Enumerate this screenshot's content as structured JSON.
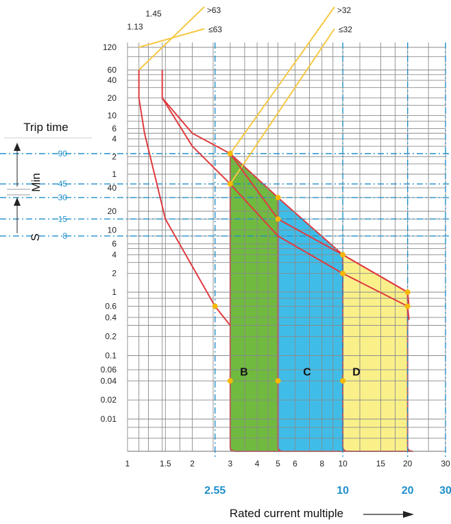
{
  "colors": {
    "grid": "#8a8a8a",
    "curve": "#e0393e",
    "yellow_line": "#f5c842",
    "blue_marker": "#1f8fca",
    "zone_B": "#6fba3f",
    "zone_C": "#3fbde8",
    "zone_D": "#faf08a",
    "point": "#f5b800"
  },
  "chart_data": {
    "type": "line",
    "title": "",
    "xlabel": "Rated current multiple",
    "ylabel": "Trip time",
    "y_unit_labels": [
      "Min",
      "S"
    ],
    "x_scale": "log",
    "xlim": [
      1,
      30
    ],
    "x_ticks": [
      "1",
      "1.5",
      "2",
      "3",
      "4",
      "5",
      "6",
      "8",
      "10",
      "15",
      "20",
      "30"
    ],
    "x_marked_ticks": [
      "2.55",
      "10",
      "20",
      "30"
    ],
    "y_ticks_min": [
      "120",
      "60",
      "40",
      "20",
      "10",
      "6",
      "4",
      "2",
      "1"
    ],
    "y_ticks_s": [
      "40",
      "20",
      "10",
      "6",
      "4",
      "2",
      "1",
      "0.6",
      "0.4",
      "0.2",
      "0.1",
      "0.06",
      "0.04",
      "0.02",
      "0.01"
    ],
    "y_marked_ticks": [
      "90",
      "45",
      "30",
      "15",
      "8"
    ],
    "top_labels": [
      "1.13",
      "1.45",
      ">63",
      "≤63",
      ">32",
      "≤32"
    ],
    "zones": [
      {
        "name": "B",
        "from_x": 3,
        "to_x": 5
      },
      {
        "name": "C",
        "from_x": 5,
        "to_x": 10
      },
      {
        "name": "D",
        "from_x": 10,
        "to_x": 20
      }
    ],
    "series": [
      {
        "x": [
          1.13,
          1.13,
          1.2,
          1.5,
          2.55,
          3
        ],
        "y": [
          "60 min",
          "20 min",
          "5 min",
          "15 s",
          "0.6 s",
          "0.3 s"
        ]
      },
      {
        "x": [
          1.45,
          1.45,
          2,
          3,
          5,
          10,
          20
        ],
        "y": [
          "60 min",
          "20 min",
          "5 min",
          "90 s",
          "15 s",
          "4 s",
          "1 s"
        ]
      },
      {
        "x": [
          1.45,
          2,
          3,
          5,
          10,
          20
        ],
        "y": [
          "20 min",
          "3 min",
          "45 s",
          "8 s",
          "2 s",
          "0.6 s"
        ]
      }
    ],
    "marked_points": [
      {
        "x": 2.55,
        "y": "0.6 s"
      },
      {
        "x": 3,
        "y": "90 s"
      },
      {
        "x": 3,
        "y": "45 s"
      },
      {
        "x": 5,
        "y": "30 s"
      },
      {
        "x": 5,
        "y": "15 s"
      },
      {
        "x": 10,
        "y": "4 s"
      },
      {
        "x": 10,
        "y": "2 s"
      },
      {
        "x": 20,
        "y": "1 s"
      },
      {
        "x": 20,
        "y": "0.6 s"
      },
      {
        "x": 3,
        "y": "0.04 s"
      },
      {
        "x": 5,
        "y": "0.04 s"
      },
      {
        "x": 10,
        "y": "0.04 s"
      }
    ]
  }
}
